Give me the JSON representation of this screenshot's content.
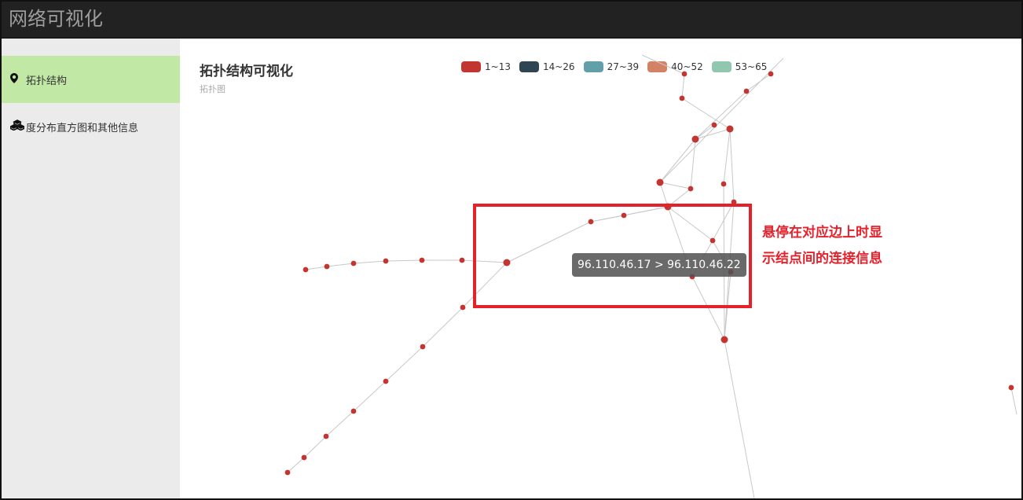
{
  "app": {
    "title": "网络可视化"
  },
  "sidebar": {
    "items": [
      {
        "label": "拓扑结构",
        "icon": "map-marker-icon",
        "active": true
      },
      {
        "label": "度分布直方图和其他信息",
        "icon": "cubes-icon",
        "active": false
      }
    ]
  },
  "chart": {
    "title": "拓扑结构可视化",
    "subtitle": "拓扑图",
    "legend": [
      {
        "label": "1~13",
        "color": "#c23531"
      },
      {
        "label": "14~26",
        "color": "#2f4554"
      },
      {
        "label": "27~39",
        "color": "#61a0a8"
      },
      {
        "label": "40~52",
        "color": "#d48265"
      },
      {
        "label": "53~65",
        "color": "#91c7ae"
      }
    ]
  },
  "tooltip": {
    "text": "96.110.46.17 > 96.110.46.22"
  },
  "annotation": {
    "line1": "悬停在对应边上时显",
    "line2": "示结点间的连接信息",
    "color": "#e3222c"
  }
}
